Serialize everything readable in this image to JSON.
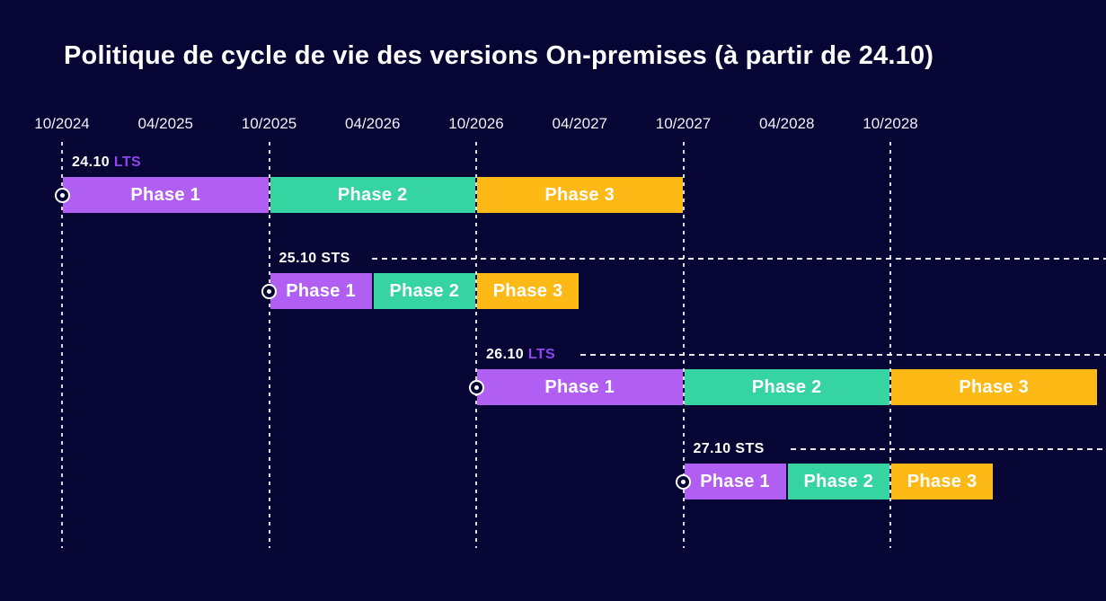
{
  "title": "Politique de cycle de vie des versions On-premises (à partir de 24.10)",
  "colors": {
    "background": "#070534",
    "phase1": "#b15ef2",
    "phase2": "#35d4a1",
    "phase3": "#fdb915",
    "lts_text": "#8f46ee",
    "sts_text": "#ffffff",
    "text": "#ffffff",
    "axis_text": "#eef0f6",
    "gridline": "#ffffff"
  },
  "chart_data": {
    "type": "gantt",
    "title": "Politique de cycle de vie des versions On-premises (à partir de 24.10)",
    "x_axis": {
      "tick_labels": [
        "10/2024",
        "04/2025",
        "10/2025",
        "04/2026",
        "10/2026",
        "04/2027",
        "10/2027",
        "04/2028",
        "10/2028"
      ],
      "tick_interval_months": 6,
      "range_start": "10/2024",
      "range_end": "10/2028"
    },
    "gridline_months": [
      "10/2024",
      "10/2025",
      "10/2026",
      "10/2027",
      "10/2028"
    ],
    "phase_colors": {
      "Phase 1": "#b15ef2",
      "Phase 2": "#35d4a1",
      "Phase 3": "#fdb915"
    },
    "rows": [
      {
        "version": "24.10",
        "release_type": "LTS",
        "dashed_line_to_edge": false,
        "phases": [
          {
            "label": "Phase 1",
            "start": "10/2024",
            "end": "10/2025",
            "color_key": "phase1"
          },
          {
            "label": "Phase 2",
            "start": "10/2025",
            "end": "10/2026",
            "color_key": "phase2"
          },
          {
            "label": "Phase 3",
            "start": "10/2026",
            "end": "10/2027",
            "color_key": "phase3"
          }
        ]
      },
      {
        "version": "25.10",
        "release_type": "STS",
        "dashed_line_to_edge": true,
        "phases": [
          {
            "label": "Phase 1",
            "start": "10/2025",
            "end": "04/2026",
            "color_key": "phase1"
          },
          {
            "label": "Phase 2",
            "start": "04/2026",
            "end": "10/2026",
            "color_key": "phase2"
          },
          {
            "label": "Phase 3",
            "start": "10/2026",
            "end": "04/2027",
            "color_key": "phase3"
          }
        ]
      },
      {
        "version": "26.10",
        "release_type": "LTS",
        "dashed_line_to_edge": true,
        "phases": [
          {
            "label": "Phase 1",
            "start": "10/2026",
            "end": "10/2027",
            "color_key": "phase1"
          },
          {
            "label": "Phase 2",
            "start": "10/2027",
            "end": "10/2028",
            "color_key": "phase2"
          },
          {
            "label": "Phase 3",
            "start": "10/2028",
            "end": "10/2029",
            "color_key": "phase3"
          }
        ]
      },
      {
        "version": "27.10",
        "release_type": "STS",
        "dashed_line_to_edge": true,
        "phases": [
          {
            "label": "Phase 1",
            "start": "10/2027",
            "end": "04/2028",
            "color_key": "phase1"
          },
          {
            "label": "Phase 2",
            "start": "04/2028",
            "end": "10/2028",
            "color_key": "phase2"
          },
          {
            "label": "Phase 3",
            "start": "10/2028",
            "end": "04/2029",
            "color_key": "phase3"
          }
        ]
      }
    ]
  }
}
